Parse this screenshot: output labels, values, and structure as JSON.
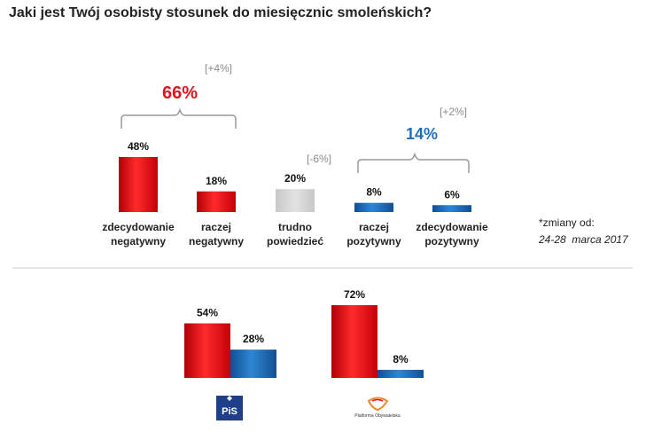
{
  "colors": {
    "red": "#e0141c",
    "blue": "#1f6fb8",
    "gray": "#d0d0d0",
    "pis_logo": "#1f3f8a",
    "po_logo": "#f08a2a"
  },
  "chart_data": [
    {
      "type": "bar",
      "title": "Jaki jest Twój osobisty stosunek do miesięcznic smoleńskich?",
      "categories": [
        {
          "line1": "zdecydowanie",
          "line2": "negatywny"
        },
        {
          "line1": "raczej",
          "line2": "negatywny"
        },
        {
          "line1": "trudno",
          "line2": "powiedzieć"
        },
        {
          "line1": "raczej",
          "line2": "pozytywny"
        },
        {
          "line1": "zdecydowanie",
          "line2": "pozytywny"
        }
      ],
      "values": [
        48,
        18,
        20,
        8,
        6
      ],
      "value_labels": [
        "48%",
        "18%",
        "20%",
        "8%",
        "6%"
      ],
      "bar_colors": [
        "red",
        "red",
        "gray",
        "blue",
        "blue"
      ],
      "groups": [
        {
          "name": "negative",
          "total": "66%",
          "change": "[+4%]",
          "members": [
            0,
            1
          ]
        },
        {
          "name": "neutral",
          "change": "[-6%]",
          "members": [
            2
          ]
        },
        {
          "name": "positive",
          "total": "14%",
          "change": "[+2%]",
          "members": [
            3,
            4
          ]
        }
      ],
      "note_line1": "*zmiany od:",
      "note_line2": "24-28  marca 2017",
      "ylim": [
        0,
        50
      ]
    },
    {
      "type": "bar",
      "groups": [
        {
          "party": "PiS",
          "logo_text": "PiS",
          "series": [
            {
              "name": "negatywny",
              "value": 54,
              "label": "54%"
            },
            {
              "name": "pozytywny",
              "value": 28,
              "label": "28%"
            }
          ]
        },
        {
          "party": "PO",
          "logo_text": "Platforma Obywatelska",
          "series": [
            {
              "name": "negatywny",
              "value": 72,
              "label": "72%"
            },
            {
              "name": "pozytywny",
              "value": 8,
              "label": "8%"
            }
          ]
        }
      ],
      "series_colors": [
        "red",
        "blue"
      ],
      "ylim": [
        0,
        75
      ]
    }
  ]
}
